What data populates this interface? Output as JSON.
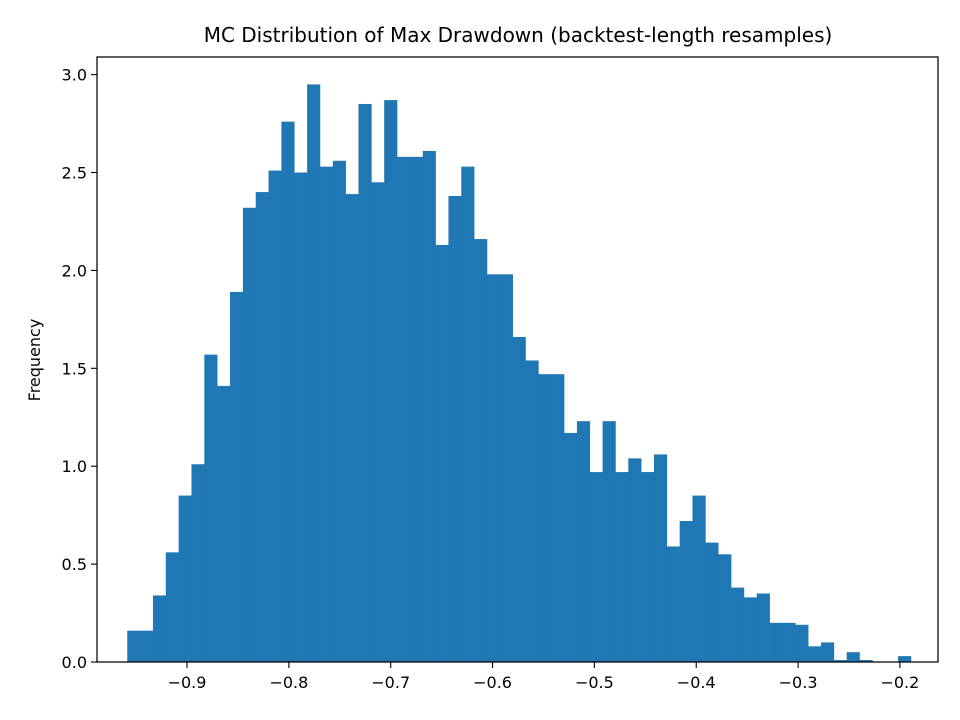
{
  "chart_data": {
    "type": "bar",
    "title": "MC Distribution of Max Drawdown (backtest-length resamples)",
    "xlabel": "",
    "ylabel": "Frequency",
    "xlim": [
      -0.9884,
      -0.1626
    ],
    "ylim": [
      0,
      3.09
    ],
    "x_ticks": [
      -0.9,
      -0.8,
      -0.7,
      -0.6,
      -0.5,
      -0.4,
      -0.3,
      -0.2
    ],
    "x_tick_labels": [
      "−0.9",
      "−0.8",
      "−0.7",
      "−0.6",
      "−0.5",
      "−0.4",
      "−0.3",
      "−0.2"
    ],
    "y_ticks": [
      0,
      0.5,
      1.0,
      1.5,
      2.0,
      2.5,
      3.0
    ],
    "y_tick_labels": [
      "0.0",
      "0.5",
      "1.0",
      "1.5",
      "2.0",
      "2.5",
      "3.0"
    ],
    "grid": false,
    "bar_color": "#1f77b4",
    "bins": {
      "start": -0.9587,
      "width": 0.012615
    },
    "values": [
      0.16,
      0.16,
      0.34,
      0.56,
      0.85,
      1.01,
      1.57,
      1.41,
      1.89,
      2.32,
      2.4,
      2.51,
      2.76,
      2.5,
      2.95,
      2.53,
      2.56,
      2.39,
      2.85,
      2.45,
      2.87,
      2.58,
      2.58,
      2.61,
      2.13,
      2.38,
      2.53,
      2.16,
      1.98,
      1.98,
      1.66,
      1.54,
      1.47,
      1.47,
      1.17,
      1.23,
      0.97,
      1.23,
      0.97,
      1.04,
      0.97,
      1.06,
      0.59,
      0.72,
      0.85,
      0.61,
      0.55,
      0.38,
      0.33,
      0.35,
      0.2,
      0.2,
      0.19,
      0.08,
      0.1,
      0.01,
      0.05,
      0.01,
      0.0,
      0.0,
      0.03
    ]
  },
  "colors": {
    "bar": "#1f77b4",
    "axes": "#000000",
    "background": "#ffffff"
  }
}
